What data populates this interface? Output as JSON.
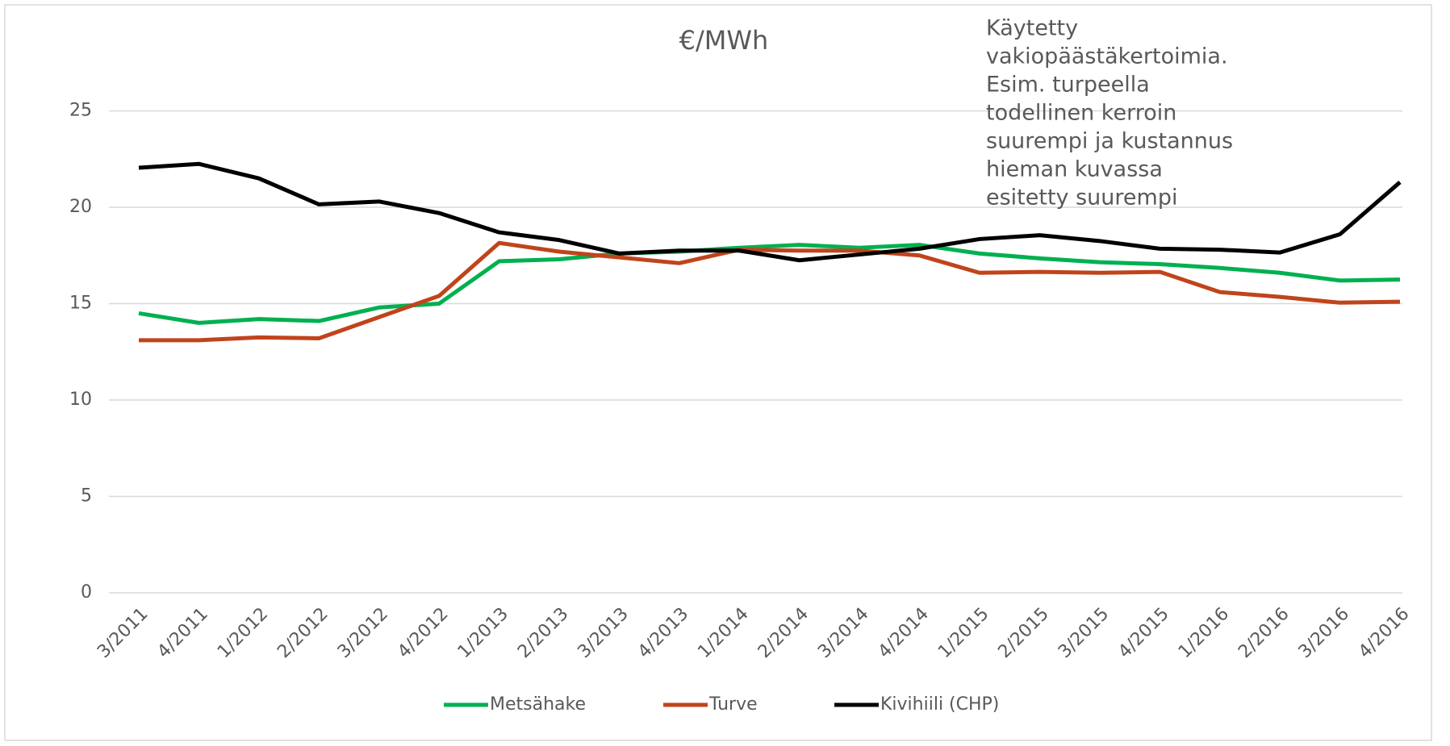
{
  "chart_data": {
    "type": "line",
    "title": "€/MWh",
    "annotation": [
      "Käytetty",
      "vakiopäästäkertoimia.",
      "Esim. turpeella",
      "todellinen kerroin",
      "suurempi ja kustannus",
      "hieman kuvassa",
      "esitetty suurempi"
    ],
    "categories": [
      "3/2011",
      "4/2011",
      "1/2012",
      "2/2012",
      "3/2012",
      "4/2012",
      "1/2013",
      "2/2013",
      "3/2013",
      "4/2013",
      "1/2014",
      "2/2014",
      "3/2014",
      "4/2014",
      "1/2015",
      "2/2015",
      "3/2015",
      "4/2015",
      "1/2016",
      "2/2016",
      "3/2016",
      "4/2016"
    ],
    "series": [
      {
        "name": "Metsähake",
        "color": "#00b050",
        "values": [
          14.5,
          14.0,
          14.2,
          14.1,
          14.8,
          15.0,
          17.2,
          17.3,
          17.6,
          17.7,
          17.9,
          18.05,
          17.9,
          18.05,
          17.6,
          17.35,
          17.15,
          17.05,
          16.85,
          16.6,
          16.2,
          16.25
        ]
      },
      {
        "name": "Turve",
        "color": "#c0441b",
        "values": [
          13.1,
          13.1,
          13.25,
          13.2,
          14.3,
          15.4,
          18.15,
          17.7,
          17.4,
          17.1,
          17.8,
          17.75,
          17.75,
          17.5,
          16.6,
          16.65,
          16.6,
          16.65,
          15.6,
          15.35,
          15.05,
          15.1
        ]
      },
      {
        "name": "Kivihiili (CHP)",
        "color": "#000000",
        "values": [
          22.05,
          22.25,
          21.5,
          20.15,
          20.3,
          19.7,
          18.7,
          18.3,
          17.6,
          17.75,
          17.75,
          17.25,
          17.55,
          17.85,
          18.35,
          18.55,
          18.25,
          17.85,
          17.8,
          17.65,
          18.6,
          21.3
        ]
      }
    ],
    "ylim": [
      0,
      25
    ],
    "yticks": [
      0,
      5,
      10,
      15,
      20,
      25
    ],
    "grid": true,
    "legend": "bottom"
  }
}
